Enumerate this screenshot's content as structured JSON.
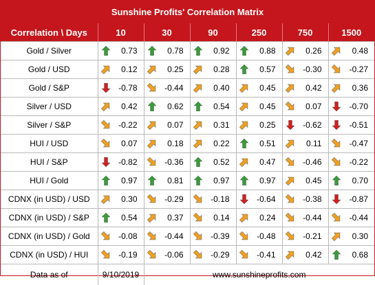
{
  "title": "Sunshine Profits' Correlation Matrix",
  "header": [
    "Correlation \\ Days",
    "10",
    "30",
    "90",
    "250",
    "750",
    "1500"
  ],
  "rows": [
    {
      "label": "Gold / Silver",
      "cells": [
        {
          "v": "0.73",
          "a": "up"
        },
        {
          "v": "0.78",
          "a": "up"
        },
        {
          "v": "0.92",
          "a": "up"
        },
        {
          "v": "0.88",
          "a": "up"
        },
        {
          "v": "0.26",
          "a": "ne"
        },
        {
          "v": "0.48",
          "a": "ne"
        }
      ]
    },
    {
      "label": "Gold / USD",
      "cells": [
        {
          "v": "0.12",
          "a": "ne"
        },
        {
          "v": "0.25",
          "a": "ne"
        },
        {
          "v": "0.28",
          "a": "ne"
        },
        {
          "v": "0.57",
          "a": "up"
        },
        {
          "v": "-0.30",
          "a": "se"
        },
        {
          "v": "-0.27",
          "a": "se"
        }
      ]
    },
    {
      "label": "Gold / S&P",
      "cells": [
        {
          "v": "-0.78",
          "a": "down"
        },
        {
          "v": "-0.44",
          "a": "se"
        },
        {
          "v": "0.40",
          "a": "ne"
        },
        {
          "v": "0.45",
          "a": "ne"
        },
        {
          "v": "0.42",
          "a": "ne"
        },
        {
          "v": "0.36",
          "a": "ne"
        }
      ]
    },
    {
      "label": "Silver / USD",
      "cells": [
        {
          "v": "0.42",
          "a": "ne"
        },
        {
          "v": "0.62",
          "a": "up"
        },
        {
          "v": "0.54",
          "a": "up"
        },
        {
          "v": "0.45",
          "a": "ne"
        },
        {
          "v": "0.07",
          "a": "se"
        },
        {
          "v": "-0.70",
          "a": "down"
        }
      ]
    },
    {
      "label": "Silver / S&P",
      "cells": [
        {
          "v": "-0.22",
          "a": "se"
        },
        {
          "v": "0.07",
          "a": "ne"
        },
        {
          "v": "0.31",
          "a": "ne"
        },
        {
          "v": "0.25",
          "a": "ne"
        },
        {
          "v": "-0.62",
          "a": "down"
        },
        {
          "v": "-0.51",
          "a": "down"
        }
      ]
    },
    {
      "label": "HUI / USD",
      "cells": [
        {
          "v": "0.07",
          "a": "se"
        },
        {
          "v": "0.18",
          "a": "ne"
        },
        {
          "v": "0.22",
          "a": "ne"
        },
        {
          "v": "0.51",
          "a": "up"
        },
        {
          "v": "0.11",
          "a": "ne"
        },
        {
          "v": "-0.47",
          "a": "se"
        }
      ]
    },
    {
      "label": "HUI / S&P",
      "cells": [
        {
          "v": "-0.82",
          "a": "down"
        },
        {
          "v": "-0.36",
          "a": "se"
        },
        {
          "v": "0.52",
          "a": "up"
        },
        {
          "v": "0.47",
          "a": "ne"
        },
        {
          "v": "-0.46",
          "a": "se"
        },
        {
          "v": "-0.22",
          "a": "se"
        }
      ]
    },
    {
      "label": "HUI / Gold",
      "cells": [
        {
          "v": "0.97",
          "a": "up"
        },
        {
          "v": "0.81",
          "a": "up"
        },
        {
          "v": "0.97",
          "a": "up"
        },
        {
          "v": "0.97",
          "a": "up"
        },
        {
          "v": "0.45",
          "a": "ne"
        },
        {
          "v": "0.70",
          "a": "up"
        }
      ]
    },
    {
      "label": "CDNX (in USD) / USD",
      "cells": [
        {
          "v": "0.30",
          "a": "ne"
        },
        {
          "v": "-0.29",
          "a": "se"
        },
        {
          "v": "-0.18",
          "a": "se"
        },
        {
          "v": "-0.64",
          "a": "down"
        },
        {
          "v": "-0.38",
          "a": "se"
        },
        {
          "v": "-0.87",
          "a": "down"
        }
      ]
    },
    {
      "label": "CDNX (in USD) / S&P",
      "cells": [
        {
          "v": "0.54",
          "a": "up"
        },
        {
          "v": "0.37",
          "a": "ne"
        },
        {
          "v": "0.14",
          "a": "se"
        },
        {
          "v": "0.24",
          "a": "ne"
        },
        {
          "v": "-0.44",
          "a": "se"
        },
        {
          "v": "-0.44",
          "a": "se"
        }
      ]
    },
    {
      "label": "CDNX (in USD) / Gold",
      "cells": [
        {
          "v": "-0.08",
          "a": "se"
        },
        {
          "v": "-0.44",
          "a": "se"
        },
        {
          "v": "-0.39",
          "a": "se"
        },
        {
          "v": "-0.48",
          "a": "se"
        },
        {
          "v": "-0.21",
          "a": "se"
        },
        {
          "v": "0.30",
          "a": "ne"
        }
      ]
    },
    {
      "label": "CDNX (in USD) / HUI",
      "cells": [
        {
          "v": "-0.19",
          "a": "se"
        },
        {
          "v": "-0.06",
          "a": "se"
        },
        {
          "v": "-0.29",
          "a": "se"
        },
        {
          "v": "-0.41",
          "a": "se"
        },
        {
          "v": "0.42",
          "a": "ne"
        },
        {
          "v": "0.68",
          "a": "up"
        }
      ]
    }
  ],
  "footer": {
    "label": "Data as of",
    "date": "9/10/2019",
    "url": "www.sunshineprofits.com"
  },
  "colors": {
    "header_bg": "#c4161c",
    "up": "#3a9b3a",
    "down": "#d02020",
    "ne": "#f0a020",
    "se": "#f0a020"
  }
}
